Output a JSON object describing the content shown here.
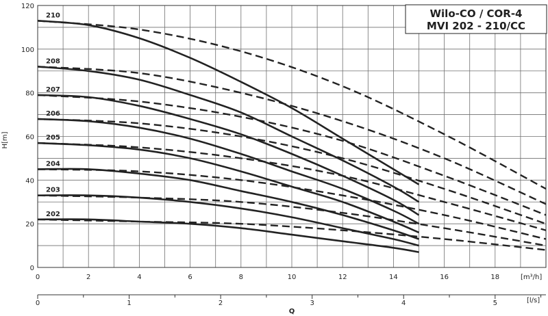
{
  "chart_data": {
    "type": "line",
    "title_lines": [
      "Wilo-CO / COR-4",
      "MVI 202 - 210/CC"
    ],
    "ylabel": "H[m]",
    "xlabel": "Q",
    "primary_x_unit": "[m³/h]",
    "secondary_x_unit": "[l/s]",
    "xlim": [
      0,
      20
    ],
    "ylim": [
      0,
      120
    ],
    "x_ticks": [
      0,
      2,
      4,
      6,
      8,
      10,
      12,
      14,
      16,
      18
    ],
    "y_ticks": [
      0,
      20,
      40,
      60,
      80,
      100,
      120
    ],
    "secondary_x_ticks": [
      0,
      1,
      2,
      3,
      4,
      5
    ],
    "grid": true,
    "series": [
      {
        "name": "210",
        "style": "solid",
        "x": [
          0,
          2,
          4,
          6,
          8,
          10,
          12,
          14,
          15
        ],
        "y": [
          113,
          111,
          105,
          96,
          85,
          73,
          59,
          45,
          38
        ]
      },
      {
        "name": "210",
        "style": "dashed",
        "x": [
          0,
          4,
          8,
          12,
          16,
          20
        ],
        "y": [
          113,
          109,
          99,
          83,
          61,
          36
        ]
      },
      {
        "name": "208",
        "style": "solid",
        "x": [
          0,
          2,
          4,
          6,
          8,
          10,
          12,
          14,
          15
        ],
        "y": [
          92,
          90,
          86,
          79,
          71,
          60,
          49,
          37,
          30
        ]
      },
      {
        "name": "208",
        "style": "dashed",
        "x": [
          0,
          4,
          8,
          12,
          16,
          20
        ],
        "y": [
          92,
          89,
          80,
          67,
          50,
          29
        ]
      },
      {
        "name": "207",
        "style": "solid",
        "x": [
          0,
          2,
          4,
          6,
          8,
          10,
          12,
          14,
          15
        ],
        "y": [
          79,
          78,
          74,
          68,
          61,
          52,
          42,
          31,
          24
        ]
      },
      {
        "name": "207",
        "style": "dashed",
        "x": [
          0,
          4,
          8,
          12,
          16,
          20
        ],
        "y": [
          79,
          76,
          69,
          58,
          42,
          24
        ]
      },
      {
        "name": "206",
        "style": "solid",
        "x": [
          0,
          2,
          4,
          6,
          8,
          10,
          12,
          14,
          15
        ],
        "y": [
          68,
          67,
          64,
          59,
          52,
          44,
          36,
          26,
          20
        ]
      },
      {
        "name": "206",
        "style": "dashed",
        "x": [
          0,
          4,
          8,
          12,
          16,
          20
        ],
        "y": [
          68,
          66,
          60,
          50,
          36,
          20
        ]
      },
      {
        "name": "205",
        "style": "solid",
        "x": [
          0,
          2,
          4,
          6,
          8,
          10,
          12,
          14,
          15
        ],
        "y": [
          57,
          56,
          54,
          50,
          44,
          37,
          30,
          21,
          16
        ]
      },
      {
        "name": "205",
        "style": "dashed",
        "x": [
          0,
          4,
          8,
          12,
          16,
          20
        ],
        "y": [
          57,
          55,
          50,
          42,
          30,
          17
        ]
      },
      {
        "name": "204",
        "style": "solid",
        "x": [
          0,
          2,
          4,
          6,
          8,
          10,
          12,
          14,
          15
        ],
        "y": [
          45,
          45,
          43,
          40,
          35,
          30,
          24,
          17,
          13
        ]
      },
      {
        "name": "204",
        "style": "dashed",
        "x": [
          0,
          4,
          8,
          12,
          16,
          20
        ],
        "y": [
          45,
          44,
          40,
          33,
          24,
          13
        ]
      },
      {
        "name": "203",
        "style": "solid",
        "x": [
          0,
          2,
          4,
          6,
          8,
          10,
          12,
          14,
          15
        ],
        "y": [
          33,
          33,
          32,
          30,
          27,
          23,
          18,
          13,
          10
        ]
      },
      {
        "name": "203",
        "style": "dashed",
        "x": [
          0,
          4,
          8,
          12,
          16,
          20
        ],
        "y": [
          33,
          32,
          30,
          25,
          18,
          10
        ]
      },
      {
        "name": "202",
        "style": "solid",
        "x": [
          0,
          2,
          4,
          6,
          8,
          10,
          12,
          14,
          15
        ],
        "y": [
          22,
          22,
          21,
          20,
          18,
          15,
          12,
          9,
          7
        ]
      },
      {
        "name": "202",
        "style": "dashed",
        "x": [
          0,
          4,
          8,
          12,
          16,
          20
        ],
        "y": [
          22,
          21,
          20,
          17,
          13,
          8
        ]
      }
    ]
  }
}
